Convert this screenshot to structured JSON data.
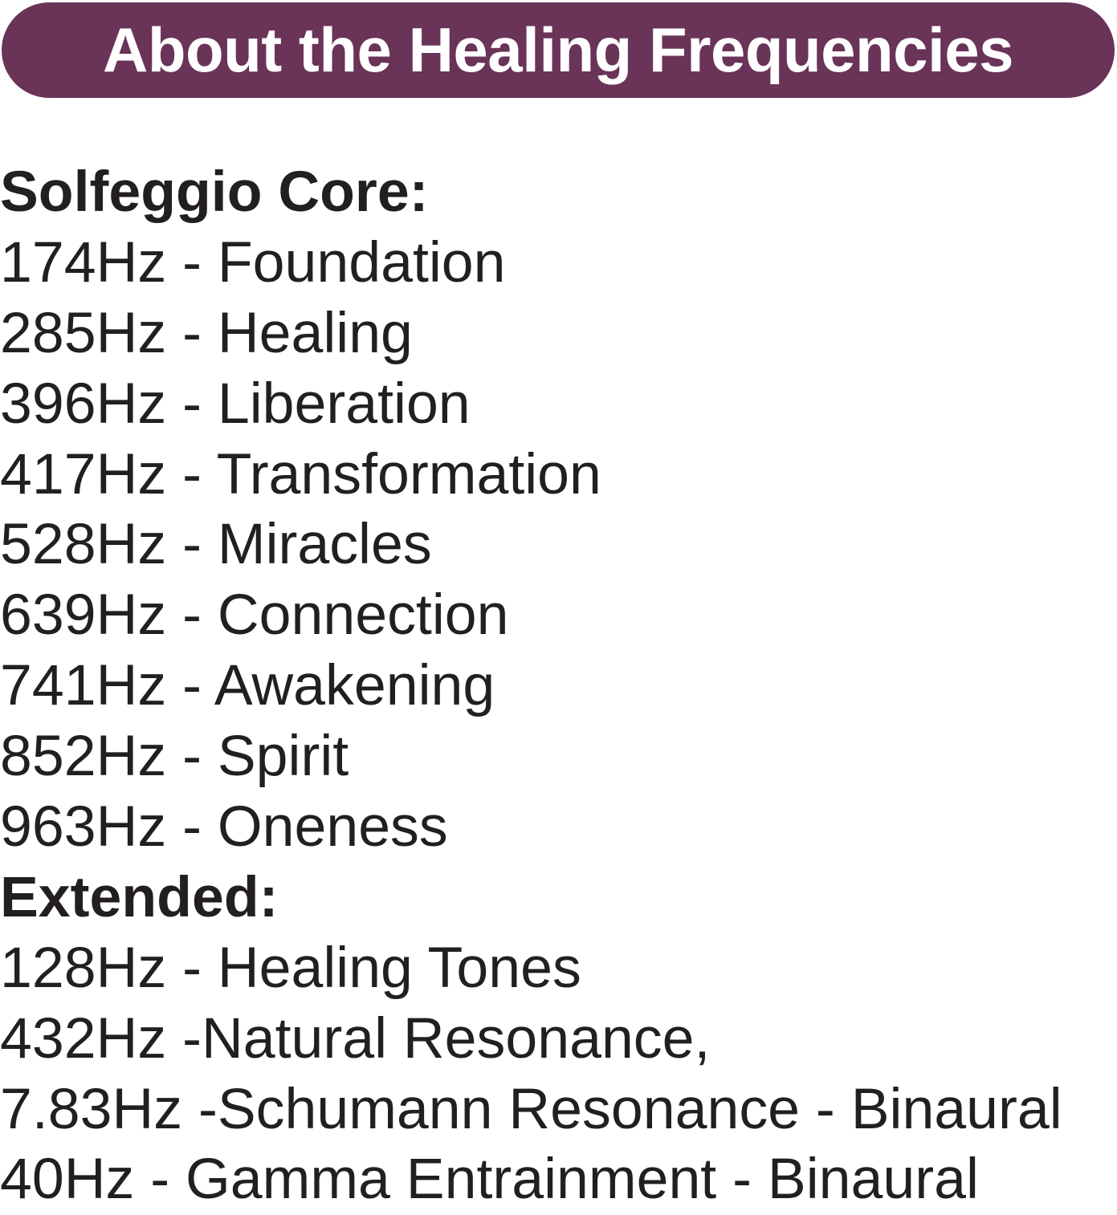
{
  "banner": {
    "title": "About the Healing Frequencies",
    "color": "#6a3358"
  },
  "solfeggio": {
    "heading": "Solfeggio Core:",
    "items": [
      "174Hz - Foundation",
      "285Hz - Healing",
      "396Hz - Liberation",
      "417Hz - Transformation",
      "528Hz - Miracles",
      "639Hz - Connection",
      "741Hz - Awakening",
      "852Hz - Spirit",
      "963Hz - Oneness"
    ]
  },
  "extended": {
    "heading": "Extended:",
    "items": [
      "128Hz - Healing Tones",
      "432Hz -Natural Resonance,",
      "7.83Hz -Schumann Resonance - Binaural",
      "40Hz - Gamma Entrainment - Binaural"
    ]
  }
}
